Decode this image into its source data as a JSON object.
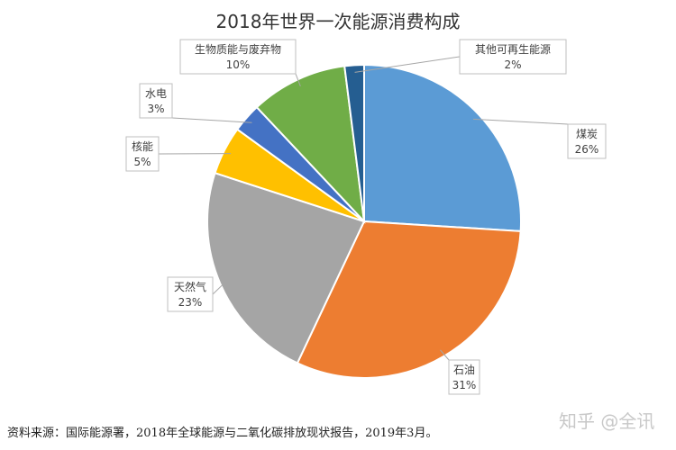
{
  "chart_data": {
    "type": "pie",
    "title": "2018年世界一次能源消费构成",
    "slices": [
      {
        "label": "煤炭",
        "value": 26,
        "value_label": "26%",
        "color": "#5b9bd5"
      },
      {
        "label": "石油",
        "value": 31,
        "value_label": "31%",
        "color": "#ed7d31"
      },
      {
        "label": "天然气",
        "value": 23,
        "value_label": "23%",
        "color": "#a5a5a5"
      },
      {
        "label": "核能",
        "value": 5,
        "value_label": "5%",
        "color": "#ffc000"
      },
      {
        "label": "水电",
        "value": 3,
        "value_label": "3%",
        "color": "#4472c4"
      },
      {
        "label": "生物质能与废弃物",
        "value": 10,
        "value_label": "10%",
        "color": "#70ad47"
      },
      {
        "label": "其他可再生能源",
        "value": 2,
        "value_label": "2%",
        "color": "#255e91"
      }
    ],
    "legend": "none"
  },
  "footer": {
    "source": "资料来源：国际能源署，2018年全球能源与二氧化碳排放现状报告，2019年3月。"
  },
  "watermark": {
    "text": "知乎 @全讯"
  }
}
